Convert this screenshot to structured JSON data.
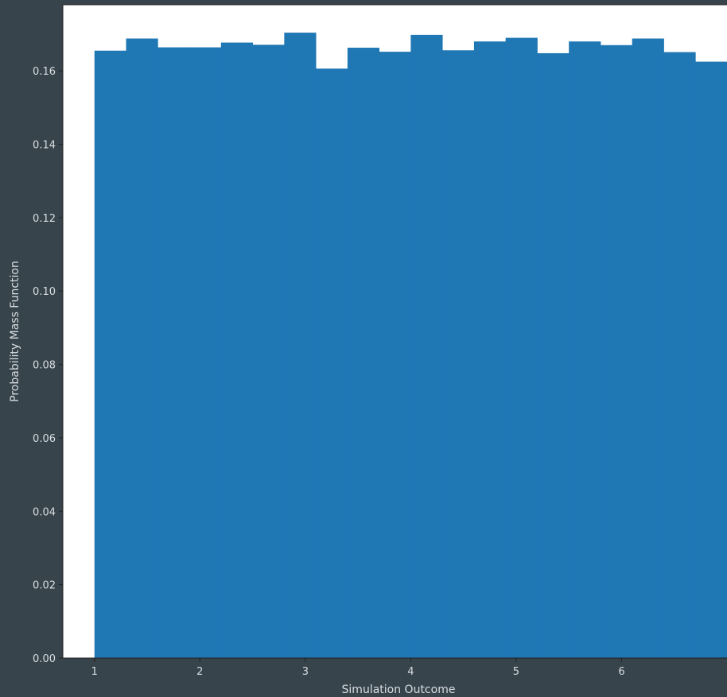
{
  "chart_data": {
    "type": "bar",
    "title": "",
    "xlabel": "Simulation Outcome",
    "ylabel": "Probability Mass Function",
    "xlim": [
      0.7,
      7.0
    ],
    "ylim": [
      0.0,
      0.178
    ],
    "grid": false,
    "bar_color": "#1f77b4",
    "plot_background": "#ffffff",
    "figure_background": "#37444c",
    "text_color": "#d8dde0",
    "bins": {
      "edges": [
        1.0,
        1.3,
        1.6,
        1.9,
        2.2,
        2.5,
        2.8,
        3.1,
        3.4,
        3.7,
        4.0,
        4.3,
        4.6,
        4.9,
        5.2,
        5.5,
        5.8,
        6.1,
        6.4,
        6.7,
        7.0
      ],
      "values": [
        0.1655,
        0.1688,
        0.1664,
        0.1664,
        0.1677,
        0.1671,
        0.1704,
        0.1606,
        0.1663,
        0.1652,
        0.1698,
        0.1656,
        0.168,
        0.169,
        0.1648,
        0.168,
        0.167,
        0.1688,
        0.1651,
        0.1625
      ]
    },
    "x_ticks": [
      1,
      2,
      3,
      4,
      5,
      6
    ],
    "x_tick_labels": [
      "1",
      "2",
      "3",
      "4",
      "5",
      "6"
    ],
    "y_ticks": [
      0.0,
      0.02,
      0.04,
      0.06,
      0.08,
      0.1,
      0.12,
      0.14,
      0.16
    ],
    "y_tick_labels": [
      "0.00",
      "0.02",
      "0.04",
      "0.06",
      "0.08",
      "0.10",
      "0.12",
      "0.14",
      "0.16"
    ]
  }
}
